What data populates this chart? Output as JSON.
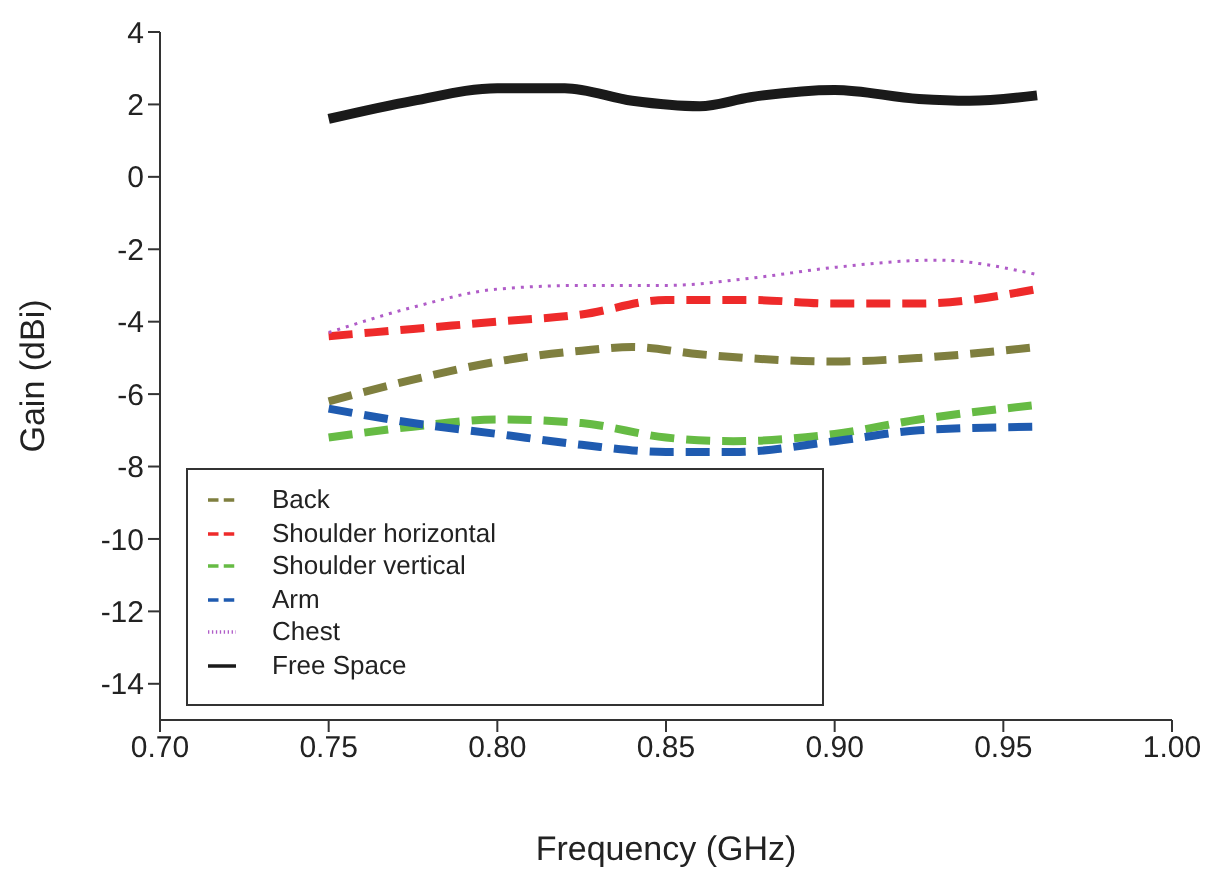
{
  "chart_data": {
    "type": "line",
    "xlabel": "Frequency (GHz)",
    "ylabel": "Gain (dBi)",
    "xlim": [
      0.7,
      1.0
    ],
    "xticks": [
      {
        "value": 0.7,
        "label": "0.70"
      },
      {
        "value": 0.75,
        "label": "0.75"
      },
      {
        "value": 0.8,
        "label": "0.80"
      },
      {
        "value": 0.85,
        "label": "0.85"
      },
      {
        "value": 0.9,
        "label": "0.90"
      },
      {
        "value": 0.95,
        "label": "0.95"
      },
      {
        "value": 1.0,
        "label": "1.00"
      }
    ],
    "ylim": [
      -15,
      4
    ],
    "yticks": [
      -14,
      -12,
      -10,
      -8,
      -6,
      -4,
      -2,
      0,
      2,
      4
    ],
    "grid": false,
    "legend": "bottom left",
    "series": [
      {
        "name": "Back",
        "color": "#7f7f3f",
        "line_style": "dashed",
        "x": [
          0.75,
          0.775,
          0.8,
          0.825,
          0.84,
          0.86,
          0.9,
          0.925,
          0.96
        ],
        "values": [
          -6.2,
          -5.6,
          -5.1,
          -4.8,
          -4.7,
          -4.9,
          -5.1,
          -5.0,
          -4.7
        ]
      },
      {
        "name": "Shoulder horizontal",
        "color": "#ee2a2a",
        "line_style": "dashed",
        "x": [
          0.75,
          0.775,
          0.8,
          0.825,
          0.85,
          0.875,
          0.9,
          0.925,
          0.96
        ],
        "values": [
          -4.4,
          -4.2,
          -4.0,
          -3.8,
          -3.4,
          -3.4,
          -3.5,
          -3.5,
          -3.1
        ]
      },
      {
        "name": "Shoulder vertical",
        "color": "#66bb44",
        "line_style": "dashed",
        "x": [
          0.75,
          0.775,
          0.8,
          0.825,
          0.85,
          0.87,
          0.9,
          0.925,
          0.96
        ],
        "values": [
          -7.2,
          -6.9,
          -6.7,
          -6.8,
          -7.2,
          -7.3,
          -7.1,
          -6.7,
          -6.3
        ]
      },
      {
        "name": "Arm",
        "color": "#1f5bb0",
        "line_style": "dashed",
        "x": [
          0.75,
          0.775,
          0.8,
          0.825,
          0.85,
          0.87,
          0.9,
          0.925,
          0.96
        ],
        "values": [
          -6.4,
          -6.8,
          -7.1,
          -7.4,
          -7.6,
          -7.6,
          -7.3,
          -7.0,
          -6.9
        ]
      },
      {
        "name": "Chest",
        "color": "#b05cc8",
        "line_style": "dotted",
        "x": [
          0.75,
          0.775,
          0.8,
          0.825,
          0.85,
          0.875,
          0.9,
          0.93,
          0.96
        ],
        "values": [
          -4.3,
          -3.6,
          -3.1,
          -3.0,
          -3.0,
          -2.8,
          -2.5,
          -2.3,
          -2.7
        ]
      },
      {
        "name": "Free Space",
        "color": "#1a1a1a",
        "line_style": "solid",
        "x": [
          0.75,
          0.775,
          0.8,
          0.82,
          0.84,
          0.86,
          0.875,
          0.9,
          0.925,
          0.94,
          0.96
        ],
        "values": [
          1.6,
          2.1,
          2.45,
          2.45,
          2.1,
          1.95,
          2.2,
          2.4,
          2.15,
          2.1,
          2.25
        ]
      }
    ]
  }
}
